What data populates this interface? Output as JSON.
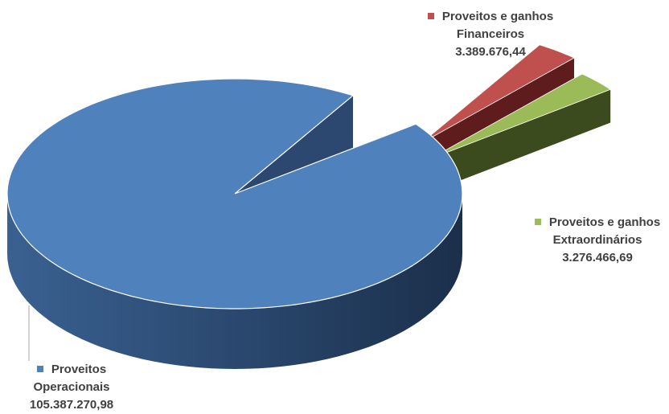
{
  "chart_data": {
    "type": "pie",
    "style": "3d-exploded",
    "categories": [
      "Proveitos Operacionais",
      "Proveitos e ganhos Financeiros",
      "Proveitos e ganhos Extraordinários"
    ],
    "values": [
      105387270.98,
      3389676.44,
      3276466.69
    ],
    "colors": [
      "#4f81bd",
      "#c0504d",
      "#9bbb59"
    ],
    "side_colors": [
      "#2a4a6e",
      "#5e1c1c",
      "#3b4b1e"
    ],
    "labels": [
      {
        "line1": "Proveitos",
        "line2": "Operacionais",
        "value": "105.387.270,98"
      },
      {
        "line1": "Proveitos e ganhos",
        "line2": "Financeiros",
        "value": "3.389.676,44"
      },
      {
        "line1": "Proveitos e ganhos",
        "line2": "Extraordinários",
        "value": "3.276.466,69"
      }
    ],
    "legend": "none"
  }
}
